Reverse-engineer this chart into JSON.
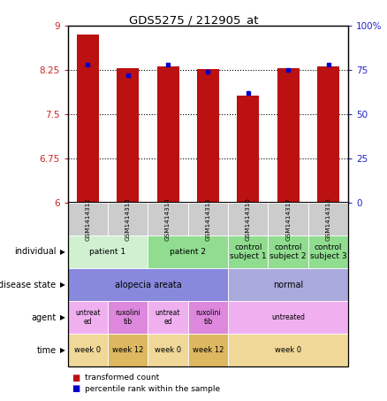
{
  "title": "GDS5275 / 212905_at",
  "samples": [
    "GSM1414312",
    "GSM1414313",
    "GSM1414314",
    "GSM1414315",
    "GSM1414316",
    "GSM1414317",
    "GSM1414318"
  ],
  "transformed_count": [
    8.85,
    8.28,
    8.32,
    8.27,
    7.82,
    8.28,
    8.32
  ],
  "percentile_rank": [
    78,
    72,
    78,
    74,
    62,
    75,
    78
  ],
  "ylim_left": [
    6,
    9
  ],
  "ylim_right": [
    0,
    100
  ],
  "yticks_left": [
    6,
    6.75,
    7.5,
    8.25,
    9
  ],
  "yticks_right": [
    0,
    25,
    50,
    75,
    100
  ],
  "bar_color": "#bb1111",
  "dot_color": "#0000cc",
  "bar_width": 0.55,
  "row_labels": [
    "individual",
    "disease state",
    "agent",
    "time"
  ],
  "individual_groups": [
    {
      "label": "patient 1",
      "cols": [
        0,
        1
      ],
      "color": "#d0f0d0"
    },
    {
      "label": "patient 2",
      "cols": [
        2,
        3
      ],
      "color": "#90dd90"
    },
    {
      "label": "control\nsubject 1",
      "cols": [
        4
      ],
      "color": "#90dd90"
    },
    {
      "label": "control\nsubject 2",
      "cols": [
        5
      ],
      "color": "#90dd90"
    },
    {
      "label": "control\nsubject 3",
      "cols": [
        6
      ],
      "color": "#90dd90"
    }
  ],
  "disease_groups": [
    {
      "label": "alopecia areata",
      "cols": [
        0,
        1,
        2,
        3
      ],
      "color": "#8888dd"
    },
    {
      "label": "normal",
      "cols": [
        4,
        5,
        6
      ],
      "color": "#aaaadd"
    }
  ],
  "agent_groups": [
    {
      "label": "untreat\ned",
      "cols": [
        0
      ],
      "color": "#f0b0f0"
    },
    {
      "label": "ruxolini\ntib",
      "cols": [
        1
      ],
      "color": "#dd88dd"
    },
    {
      "label": "untreat\ned",
      "cols": [
        2
      ],
      "color": "#f0b0f0"
    },
    {
      "label": "ruxolini\ntib",
      "cols": [
        3
      ],
      "color": "#dd88dd"
    },
    {
      "label": "untreated",
      "cols": [
        4,
        5,
        6
      ],
      "color": "#f0b0f0"
    }
  ],
  "time_groups": [
    {
      "label": "week 0",
      "cols": [
        0
      ],
      "color": "#f0d898"
    },
    {
      "label": "week 12",
      "cols": [
        1
      ],
      "color": "#ddb860"
    },
    {
      "label": "week 0",
      "cols": [
        2
      ],
      "color": "#f0d898"
    },
    {
      "label": "week 12",
      "cols": [
        3
      ],
      "color": "#ddb860"
    },
    {
      "label": "week 0",
      "cols": [
        4,
        5,
        6
      ],
      "color": "#f0d898"
    }
  ],
  "sample_bg_color": "#cccccc",
  "legend_items": [
    {
      "label": "transformed count",
      "color": "#bb1111"
    },
    {
      "label": "percentile rank within the sample",
      "color": "#0000cc"
    }
  ]
}
